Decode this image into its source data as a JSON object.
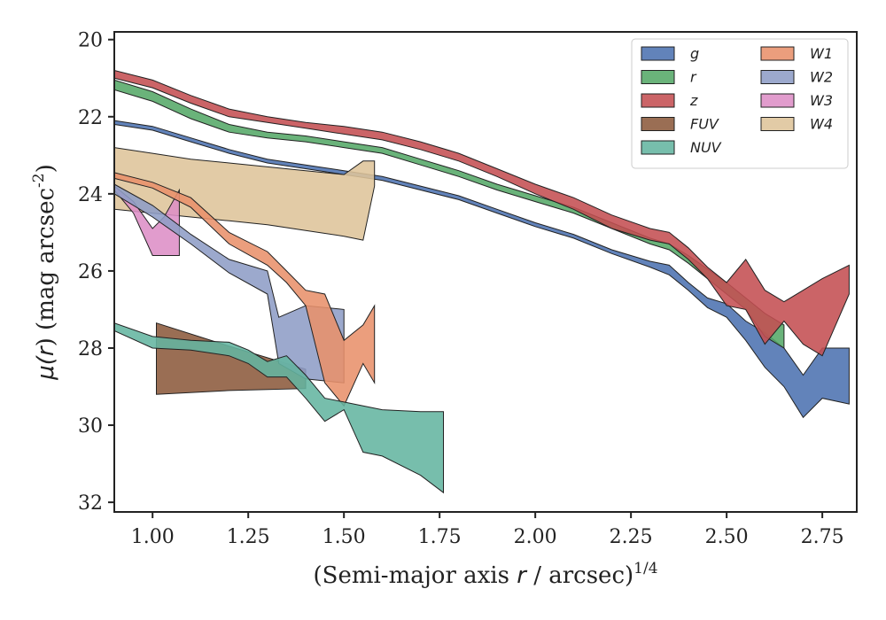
{
  "chart_data": {
    "type": "area",
    "xlabel": "(Semi-major axis r / arcsec)^{1/4}",
    "ylabel": "μ(r) (mag arcsec^{-2})",
    "xlim": [
      0.9,
      2.84
    ],
    "ylim": [
      32.25,
      19.8
    ],
    "y_inverted": true,
    "x_ticks": [
      1.0,
      1.25,
      1.5,
      1.75,
      2.0,
      2.25,
      2.5,
      2.75
    ],
    "y_ticks": [
      20,
      22,
      24,
      26,
      28,
      30,
      32
    ],
    "x_tick_labels": [
      "1.00",
      "1.25",
      "1.50",
      "1.75",
      "2.00",
      "2.25",
      "2.50",
      "2.75"
    ],
    "y_tick_labels": [
      "20",
      "22",
      "24",
      "26",
      "28",
      "30",
      "32"
    ],
    "grid": false,
    "legend_position": "top-right",
    "legend_columns": 2,
    "series": [
      {
        "name": "g",
        "color": "#4C72B0",
        "x": [
          0.9,
          1.0,
          1.1,
          1.2,
          1.3,
          1.4,
          1.5,
          1.6,
          1.7,
          1.8,
          1.9,
          2.0,
          2.1,
          2.2,
          2.3,
          2.35,
          2.4,
          2.45,
          2.5,
          2.55,
          2.6,
          2.65,
          2.7,
          2.75,
          2.82
        ],
        "lower": [
          22.1,
          22.25,
          22.55,
          22.85,
          23.1,
          23.25,
          23.4,
          23.55,
          23.8,
          24.05,
          24.4,
          24.75,
          25.05,
          25.45,
          25.75,
          25.85,
          26.3,
          26.7,
          26.85,
          27.3,
          27.6,
          28.0,
          28.7,
          28.0,
          28.0
        ],
        "upper": [
          22.2,
          22.35,
          22.65,
          22.95,
          23.2,
          23.35,
          23.5,
          23.65,
          23.9,
          24.15,
          24.5,
          24.85,
          25.15,
          25.55,
          25.9,
          26.1,
          26.5,
          26.95,
          27.2,
          27.8,
          28.5,
          29.0,
          29.8,
          29.3,
          29.45
        ]
      },
      {
        "name": "r",
        "color": "#55A868",
        "x": [
          0.9,
          1.0,
          1.1,
          1.2,
          1.3,
          1.4,
          1.5,
          1.6,
          1.7,
          1.8,
          1.9,
          2.0,
          2.1,
          2.2,
          2.3,
          2.35,
          2.4,
          2.45,
          2.5,
          2.55,
          2.6,
          2.65
        ],
        "lower": [
          21.05,
          21.35,
          21.8,
          22.2,
          22.4,
          22.5,
          22.65,
          22.8,
          23.1,
          23.4,
          23.75,
          24.05,
          24.35,
          24.75,
          25.15,
          25.3,
          25.6,
          25.95,
          26.3,
          26.7,
          27.1,
          27.4
        ],
        "upper": [
          21.3,
          21.6,
          22.05,
          22.4,
          22.55,
          22.65,
          22.8,
          22.95,
          23.25,
          23.55,
          23.9,
          24.2,
          24.5,
          24.9,
          25.3,
          25.45,
          25.8,
          26.2,
          26.6,
          27.0,
          27.7,
          28.0
        ]
      },
      {
        "name": "z",
        "color": "#C44E52",
        "x": [
          0.9,
          1.0,
          1.1,
          1.2,
          1.3,
          1.4,
          1.5,
          1.6,
          1.7,
          1.8,
          1.9,
          2.0,
          2.1,
          2.2,
          2.3,
          2.35,
          2.4,
          2.45,
          2.5,
          2.55,
          2.6,
          2.65,
          2.7,
          2.75,
          2.82
        ],
        "lower": [
          20.8,
          21.05,
          21.45,
          21.8,
          22.0,
          22.15,
          22.25,
          22.4,
          22.65,
          22.95,
          23.35,
          23.75,
          24.1,
          24.55,
          24.9,
          25.0,
          25.4,
          25.9,
          26.3,
          25.7,
          26.5,
          26.8,
          26.5,
          26.2,
          25.85
        ],
        "upper": [
          21.0,
          21.25,
          21.65,
          22.0,
          22.15,
          22.3,
          22.45,
          22.6,
          22.85,
          23.15,
          23.55,
          24.0,
          24.4,
          24.9,
          25.2,
          25.3,
          25.7,
          26.2,
          26.9,
          27.0,
          27.9,
          27.3,
          27.9,
          28.2,
          26.6
        ]
      },
      {
        "name": "FUV",
        "color": "#8C5A3C",
        "x": [
          1.01,
          1.2,
          1.4
        ],
        "lower": [
          27.35,
          27.95,
          28.55
        ],
        "upper": [
          29.2,
          29.1,
          29.05
        ]
      },
      {
        "name": "NUV",
        "color": "#64B5A0",
        "x": [
          0.9,
          1.0,
          1.1,
          1.2,
          1.25,
          1.3,
          1.35,
          1.4,
          1.45,
          1.5,
          1.55,
          1.6,
          1.7,
          1.76
        ],
        "lower": [
          27.35,
          27.7,
          27.8,
          27.85,
          28.05,
          28.35,
          28.2,
          28.7,
          29.3,
          29.4,
          29.5,
          29.6,
          29.65,
          29.65
        ],
        "upper": [
          27.55,
          28.0,
          28.05,
          28.2,
          28.4,
          28.75,
          28.75,
          29.3,
          29.9,
          29.6,
          30.7,
          30.8,
          31.3,
          31.75
        ]
      },
      {
        "name": "W1",
        "color": "#E8916B",
        "x": [
          0.9,
          1.0,
          1.1,
          1.2,
          1.3,
          1.35,
          1.4,
          1.45,
          1.5,
          1.55,
          1.58
        ],
        "lower": [
          23.45,
          23.7,
          24.1,
          25.0,
          25.5,
          26.0,
          26.5,
          26.6,
          27.8,
          27.4,
          26.9
        ],
        "upper": [
          23.6,
          23.85,
          24.35,
          25.3,
          25.85,
          26.3,
          26.9,
          28.9,
          29.5,
          28.4,
          28.9
        ]
      },
      {
        "name": "W2",
        "color": "#8E9DC6",
        "x": [
          0.9,
          1.0,
          1.1,
          1.2,
          1.3,
          1.33,
          1.4,
          1.5
        ],
        "lower": [
          23.75,
          24.3,
          25.05,
          25.7,
          26.0,
          27.2,
          26.9,
          27.0
        ],
        "upper": [
          24.0,
          24.6,
          25.3,
          26.05,
          26.6,
          28.4,
          28.8,
          28.9
        ]
      },
      {
        "name": "W3",
        "color": "#DD8EC6",
        "x": [
          0.9,
          0.95,
          1.0,
          1.03,
          1.07
        ],
        "lower": [
          23.8,
          24.2,
          24.9,
          24.6,
          23.9
        ],
        "upper": [
          23.9,
          24.5,
          25.6,
          25.6,
          25.6
        ]
      },
      {
        "name": "W4",
        "color": "#DEC49A",
        "x": [
          0.9,
          1.0,
          1.1,
          1.2,
          1.3,
          1.4,
          1.5,
          1.55,
          1.58
        ],
        "lower": [
          22.8,
          22.95,
          23.1,
          23.2,
          23.3,
          23.4,
          23.5,
          23.15,
          23.15
        ],
        "upper": [
          24.4,
          24.5,
          24.6,
          24.7,
          24.8,
          24.95,
          25.1,
          25.2,
          23.8
        ]
      }
    ]
  }
}
